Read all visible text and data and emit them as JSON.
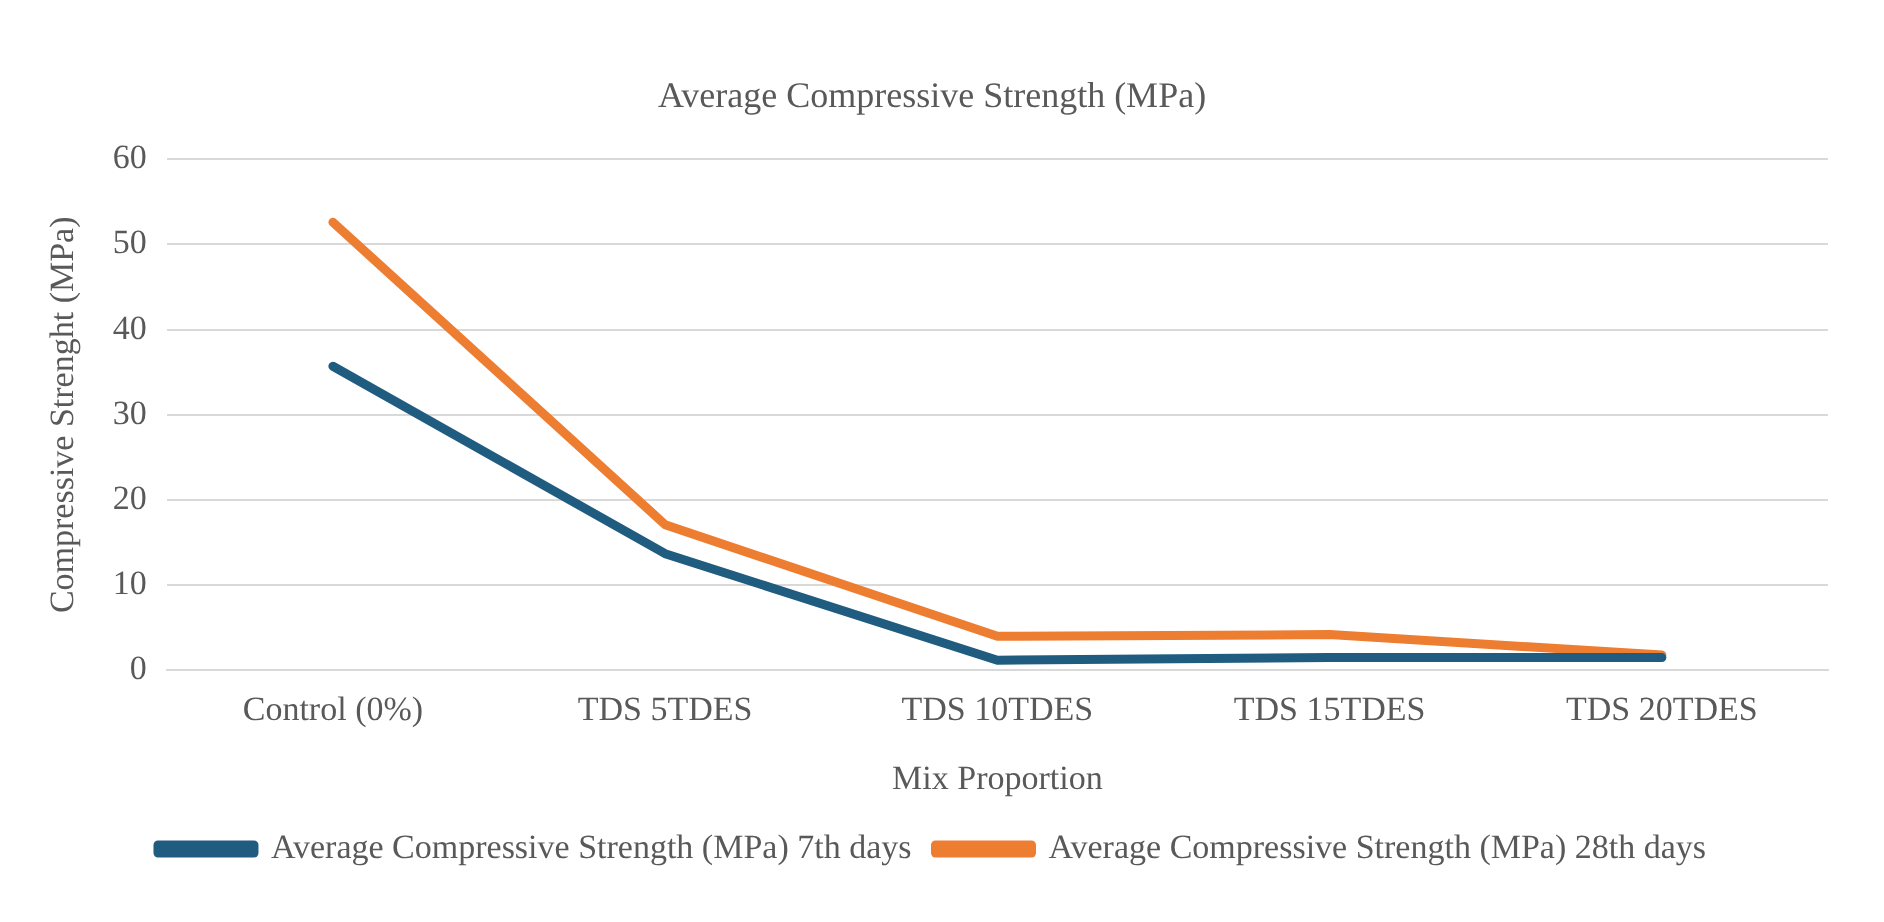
{
  "chart_data": {
    "type": "line",
    "title": "Average Compressive Strength (MPa)",
    "xlabel": "Mix Proportion",
    "ylabel": "Compressive Strenght (MPa)",
    "categories": [
      "Control (0%)",
      "TDS 5TDES",
      "TDS 10TDES",
      "TDS 15TDES",
      "TDS 20TDES"
    ],
    "series": [
      {
        "name": "Average Compressive Strength (MPa) 7th days",
        "color": "#1f5c7f",
        "values": [
          35.7,
          13.7,
          1.2,
          1.5,
          1.5
        ]
      },
      {
        "name": "Average Compressive Strength (MPa) 28th days",
        "color": "#ed7d31",
        "values": [
          52.6,
          17.1,
          4.0,
          4.2,
          1.8
        ]
      }
    ],
    "ylim": [
      0,
      60
    ],
    "yticks": [
      0,
      10,
      20,
      30,
      40,
      50,
      60
    ],
    "grid": "y",
    "legend": "bottom",
    "marker": "none",
    "line_style": "solid"
  }
}
